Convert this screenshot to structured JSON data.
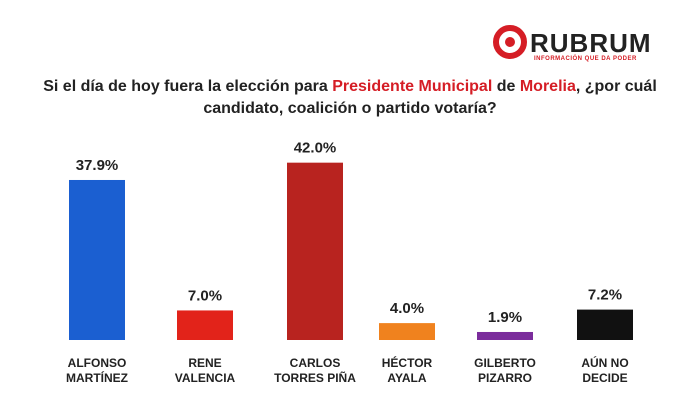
{
  "chart_data": {
    "type": "bar",
    "brand": "RUBRUM",
    "tagline": "INFORMACIÓN QUE DA PODER",
    "title": [
      {
        "text": "Si el día de hoy fuera la elección para ",
        "color": "#222222"
      },
      {
        "text": "Presidente Municipal",
        "color": "#d51d25"
      },
      {
        "text": " de ",
        "color": "#222222"
      },
      {
        "text": "Morelia",
        "color": "#d51d25"
      },
      {
        "text": ", ¿por cuál candidato, coalición o partido votaría?",
        "color": "#222222"
      }
    ],
    "categories": [
      "ALFONSO\nMARTÍNEZ",
      "RENE\nVALENCIA",
      "CARLOS\nTORRES PIÑA",
      "HÉCTOR\nAYALA",
      "GILBERTO\nPIZARRO",
      "AÚN NO\nDECIDE"
    ],
    "values": [
      37.9,
      7.0,
      42.0,
      4.0,
      1.9,
      7.2
    ],
    "value_labels": [
      "37.9%",
      "7.0%",
      "42.0%",
      "4.0%",
      "1.9%",
      "7.2%"
    ],
    "colors": [
      "#1b5fd1",
      "#e2231a",
      "#b8231f",
      "#f0821e",
      "#7b2c9c",
      "#111111"
    ],
    "ylim": [
      0,
      45
    ]
  }
}
